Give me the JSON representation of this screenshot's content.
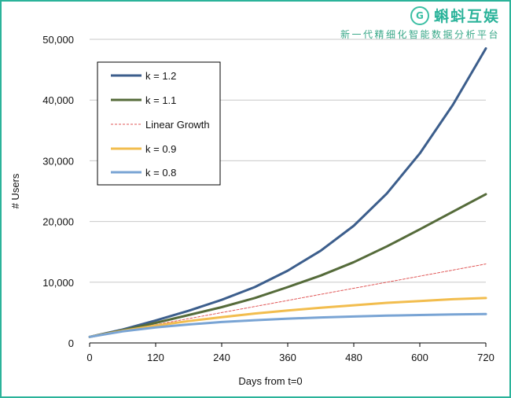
{
  "brand": {
    "logo_icon": "g-circle-logo-icon",
    "name": "蝌蚪互娱",
    "tagline": "新一代精细化智能数据分析平台",
    "accent_color": "#2bb39a"
  },
  "chart_data": {
    "type": "line",
    "title": "",
    "xlabel": "Days from t=0",
    "ylabel": "# Users",
    "xlim": [
      0,
      720
    ],
    "ylim": [
      0,
      50000
    ],
    "x_ticks": [
      0,
      120,
      240,
      360,
      480,
      600,
      720
    ],
    "x_tick_labels": [
      "0",
      "120",
      "240",
      "360",
      "480",
      "600",
      "720"
    ],
    "y_ticks": [
      0,
      10000,
      20000,
      30000,
      40000,
      50000
    ],
    "y_tick_labels": [
      "0",
      "10,000",
      "20,000",
      "30,000",
      "40,000",
      "50,000"
    ],
    "grid": "horizontal",
    "legend_position": "top-left",
    "x": [
      0,
      60,
      120,
      180,
      240,
      300,
      360,
      420,
      480,
      540,
      600,
      660,
      720
    ],
    "series": [
      {
        "name": "k = 1.2",
        "color": "#3c5e8c",
        "style": "solid",
        "values": [
          1000,
          2200,
          3700,
          5300,
          7100,
          9200,
          11900,
          15200,
          19300,
          24600,
          31200,
          39200,
          48500
        ]
      },
      {
        "name": "k = 1.1",
        "color": "#556b3a",
        "style": "solid",
        "values": [
          1000,
          2100,
          3300,
          4600,
          5900,
          7400,
          9200,
          11100,
          13300,
          15900,
          18700,
          21600,
          24500
        ]
      },
      {
        "name": "Linear Growth",
        "color": "#e05757",
        "style": "dashed",
        "values": [
          1000,
          2000,
          3000,
          4000,
          5000,
          6000,
          7000,
          8000,
          9000,
          10000,
          11000,
          12000,
          13000
        ]
      },
      {
        "name": "k = 0.9",
        "color": "#f2bd4e",
        "style": "solid",
        "values": [
          1000,
          2000,
          2850,
          3600,
          4250,
          4850,
          5350,
          5800,
          6200,
          6600,
          6900,
          7200,
          7400
        ]
      },
      {
        "name": "k = 0.8",
        "color": "#79a4d4",
        "style": "solid",
        "values": [
          1000,
          1900,
          2550,
          3050,
          3450,
          3750,
          4000,
          4200,
          4350,
          4500,
          4600,
          4700,
          4750
        ]
      }
    ]
  }
}
